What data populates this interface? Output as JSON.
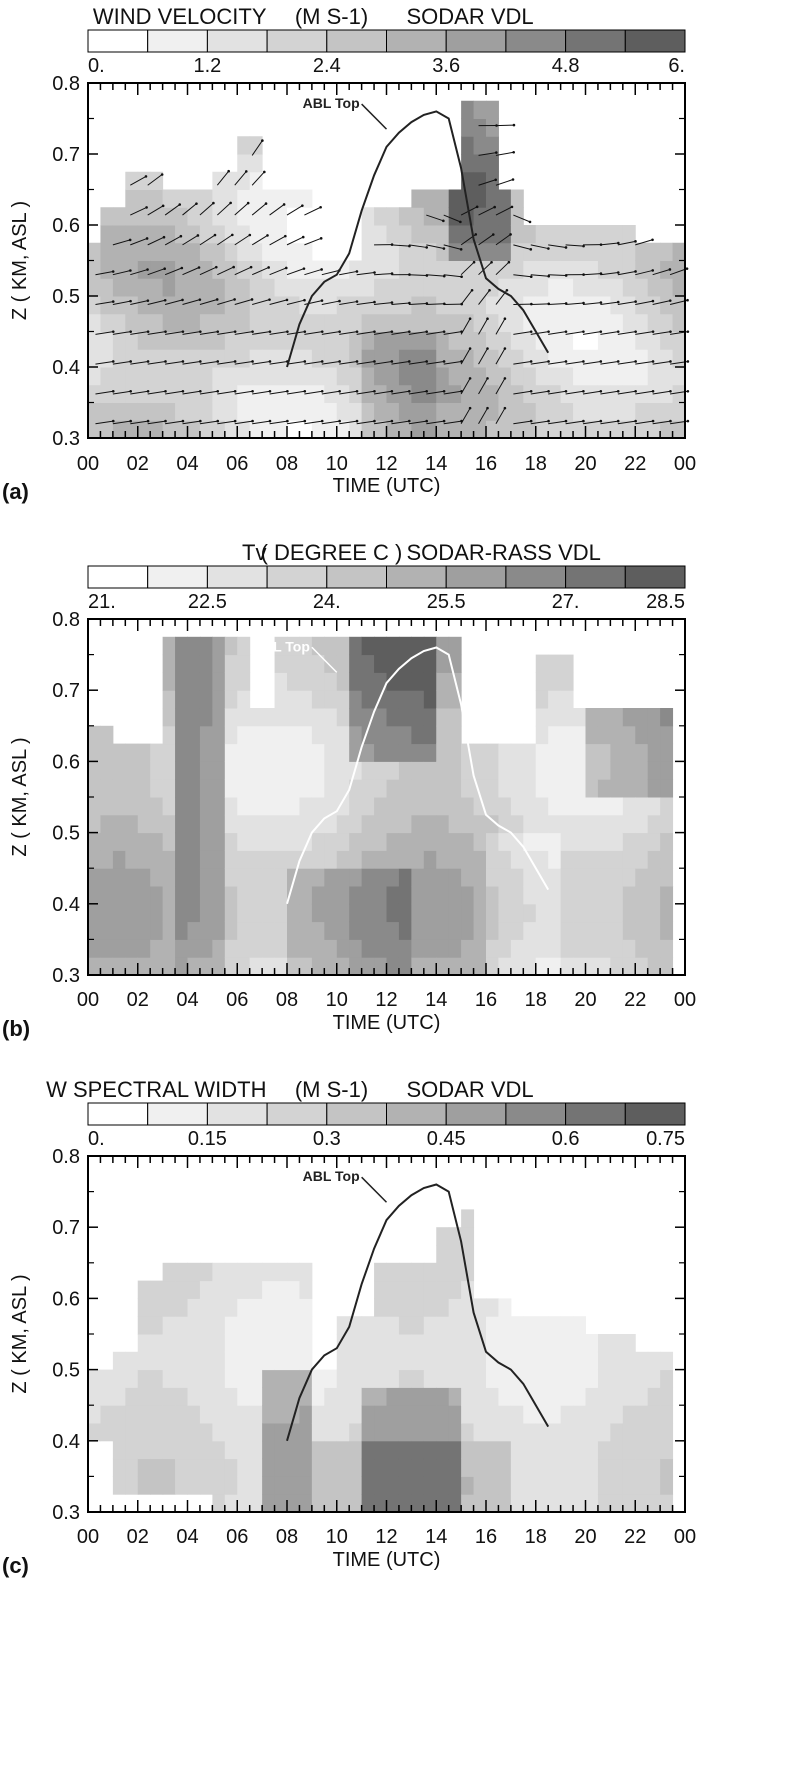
{
  "figure_labels": [
    "(a)",
    "(b)",
    "(c)"
  ],
  "abl_label": "ABL Top",
  "chart_data": [
    {
      "type": "heatmap",
      "panel": "(a)",
      "title_left": "WIND VELOCITY",
      "title_unit": "(M S-1)",
      "title_right": "SODAR  VDL",
      "colorbar_ticks": [
        "0.",
        "1.2",
        "2.4",
        "3.6",
        "4.8",
        "6."
      ],
      "colorbar_range": [
        0,
        6
      ],
      "colorbar_levels": 10,
      "xlabel": "TIME   (UTC)",
      "ylabel": "Z ( KM, ASL )",
      "xticks": [
        "00",
        "02",
        "04",
        "06",
        "08",
        "10",
        "12",
        "14",
        "16",
        "18",
        "20",
        "22",
        "00"
      ],
      "yticks": [
        "0.3",
        "0.4",
        "0.5",
        "0.6",
        "0.7",
        "0.8"
      ],
      "xlim": [
        0,
        24
      ],
      "ylim": [
        0.3,
        0.8
      ],
      "has_wind_vectors": true,
      "abl_top_curve": {
        "x": [
          8.0,
          8.5,
          9.0,
          9.5,
          10.0,
          10.5,
          11.0,
          11.5,
          12.0,
          12.5,
          13.0,
          13.5,
          14.0,
          14.5,
          15.0,
          15.5,
          16.0,
          16.5,
          17.0,
          17.5,
          18.0,
          18.5
        ],
        "y": [
          0.4,
          0.46,
          0.5,
          0.52,
          0.53,
          0.56,
          0.62,
          0.67,
          0.71,
          0.73,
          0.745,
          0.755,
          0.76,
          0.75,
          0.68,
          0.58,
          0.525,
          0.51,
          0.5,
          0.48,
          0.45,
          0.42
        ]
      },
      "abl_label_at": [
        11.0,
        0.745
      ]
    },
    {
      "type": "heatmap",
      "panel": "(b)",
      "title_left": "Tv",
      "title_unit": "( DEGREE C )",
      "title_right": "SODAR-RASS VDL",
      "colorbar_ticks": [
        "21.",
        "22.5",
        "24.",
        "25.5",
        "27.",
        "28.5"
      ],
      "colorbar_range": [
        21,
        28.5
      ],
      "colorbar_levels": 10,
      "xlabel": "TIME   (UTC)",
      "ylabel": "Z ( KM, ASL )",
      "xticks": [
        "00",
        "02",
        "04",
        "06",
        "08",
        "10",
        "12",
        "14",
        "16",
        "18",
        "20",
        "22",
        "00"
      ],
      "yticks": [
        "0.3",
        "0.4",
        "0.5",
        "0.6",
        "0.7",
        "0.8"
      ],
      "xlim": [
        0,
        24
      ],
      "ylim": [
        0.3,
        0.8
      ],
      "has_wind_vectors": false,
      "abl_top_curve": {
        "x": [
          8.0,
          8.5,
          9.0,
          9.5,
          10.0,
          10.5,
          11.0,
          11.5,
          12.0,
          12.5,
          13.0,
          13.5,
          14.0,
          14.5,
          15.0,
          15.5,
          16.0,
          16.5,
          17.0,
          17.5,
          18.0,
          18.5
        ],
        "y": [
          0.4,
          0.46,
          0.5,
          0.52,
          0.53,
          0.56,
          0.62,
          0.67,
          0.71,
          0.73,
          0.745,
          0.755,
          0.76,
          0.75,
          0.68,
          0.58,
          0.525,
          0.51,
          0.5,
          0.48,
          0.45,
          0.42
        ]
      },
      "abl_label_at": [
        9.0,
        0.735
      ]
    },
    {
      "type": "heatmap",
      "panel": "(c)",
      "title_left": "W  SPECTRAL WIDTH",
      "title_unit": "(M S-1)",
      "title_right": "SODAR  VDL",
      "colorbar_ticks": [
        "0.",
        "0.15",
        "0.3",
        "0.45",
        "0.6",
        "0.75"
      ],
      "colorbar_range": [
        0,
        0.75
      ],
      "colorbar_levels": 10,
      "xlabel": "TIME   (UTC)",
      "ylabel": "Z ( KM, ASL )",
      "xticks": [
        "00",
        "02",
        "04",
        "06",
        "08",
        "10",
        "12",
        "14",
        "16",
        "18",
        "20",
        "22",
        "00"
      ],
      "yticks": [
        "0.3",
        "0.4",
        "0.5",
        "0.6",
        "0.7",
        "0.8"
      ],
      "xlim": [
        0,
        24
      ],
      "ylim": [
        0.3,
        0.8
      ],
      "has_wind_vectors": false,
      "abl_top_curve": {
        "x": [
          8.0,
          8.5,
          9.0,
          9.5,
          10.0,
          10.5,
          11.0,
          11.5,
          12.0,
          12.5,
          13.0,
          13.5,
          14.0,
          14.5,
          15.0,
          15.5,
          16.0,
          16.5,
          17.0,
          17.5,
          18.0,
          18.5
        ],
        "y": [
          0.4,
          0.46,
          0.5,
          0.52,
          0.53,
          0.56,
          0.62,
          0.67,
          0.71,
          0.73,
          0.745,
          0.755,
          0.76,
          0.75,
          0.68,
          0.58,
          0.525,
          0.51,
          0.5,
          0.48,
          0.45,
          0.42
        ]
      },
      "abl_label_at": [
        11.0,
        0.745
      ]
    }
  ]
}
